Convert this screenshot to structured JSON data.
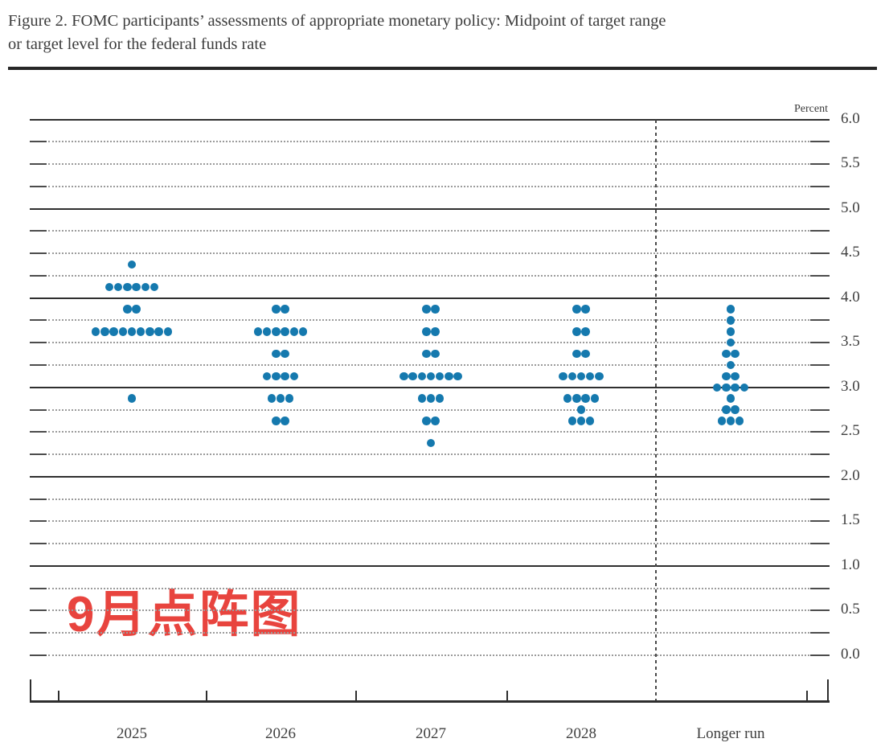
{
  "figure": {
    "title_line1": "Figure 2. FOMC participants’ assessments of appropriate monetary policy: Midpoint of target range",
    "title_line2": "or target level for the federal funds rate"
  },
  "annotation": {
    "text": "9月点阵图",
    "color": "#e8443e"
  },
  "colors": {
    "dot": "#1579ae",
    "dot_edge": "#5eaed2",
    "grid_solid": "#2f2f2f",
    "grid_dotted": "#9b9b9b",
    "text": "#3b3b3b"
  },
  "chart_data": {
    "type": "scatter",
    "subtype": "fomc-dot-plot",
    "title": "",
    "xlabel": "",
    "ylabel": "Percent",
    "grid": "on",
    "y_axis": {
      "min": 0.0,
      "max": 6.0,
      "grid_step": 0.25,
      "label_step": 0.5,
      "tick_labels": [
        "6.0",
        "5.5",
        "5.0",
        "4.5",
        "4.0",
        "3.5",
        "3.0",
        "2.5",
        "2.0",
        "1.5",
        "1.0",
        "0.5",
        "0.0"
      ]
    },
    "categories": [
      "2025",
      "2026",
      "2027",
      "2028",
      "Longer run"
    ],
    "columns": [
      {
        "label": "2025",
        "dots": [
          {
            "value": 4.375,
            "count": 1
          },
          {
            "value": 4.125,
            "count": 6
          },
          {
            "value": 3.875,
            "count": 2
          },
          {
            "value": 3.625,
            "count": 9
          },
          {
            "value": 2.875,
            "count": 1
          }
        ]
      },
      {
        "label": "2026",
        "dots": [
          {
            "value": 3.875,
            "count": 2
          },
          {
            "value": 3.625,
            "count": 6
          },
          {
            "value": 3.375,
            "count": 2
          },
          {
            "value": 3.125,
            "count": 4
          },
          {
            "value": 2.875,
            "count": 3
          },
          {
            "value": 2.625,
            "count": 2
          }
        ]
      },
      {
        "label": "2027",
        "dots": [
          {
            "value": 3.875,
            "count": 2
          },
          {
            "value": 3.625,
            "count": 2
          },
          {
            "value": 3.375,
            "count": 2
          },
          {
            "value": 3.125,
            "count": 7
          },
          {
            "value": 2.875,
            "count": 3
          },
          {
            "value": 2.625,
            "count": 2
          },
          {
            "value": 2.375,
            "count": 1
          }
        ]
      },
      {
        "label": "2028",
        "dots": [
          {
            "value": 3.875,
            "count": 2
          },
          {
            "value": 3.625,
            "count": 2
          },
          {
            "value": 3.375,
            "count": 2
          },
          {
            "value": 3.125,
            "count": 5
          },
          {
            "value": 2.875,
            "count": 4
          },
          {
            "value": 2.75,
            "count": 1
          },
          {
            "value": 2.625,
            "count": 3
          }
        ]
      },
      {
        "label": "Longer run",
        "dots": [
          {
            "value": 3.875,
            "count": 1
          },
          {
            "value": 3.75,
            "count": 1
          },
          {
            "value": 3.625,
            "count": 1
          },
          {
            "value": 3.5,
            "count": 1
          },
          {
            "value": 3.375,
            "count": 2
          },
          {
            "value": 3.25,
            "count": 1
          },
          {
            "value": 3.125,
            "count": 2
          },
          {
            "value": 3.0,
            "count": 4
          },
          {
            "value": 2.875,
            "count": 1
          },
          {
            "value": 2.75,
            "count": 2
          },
          {
            "value": 2.625,
            "count": 3
          }
        ]
      }
    ]
  }
}
